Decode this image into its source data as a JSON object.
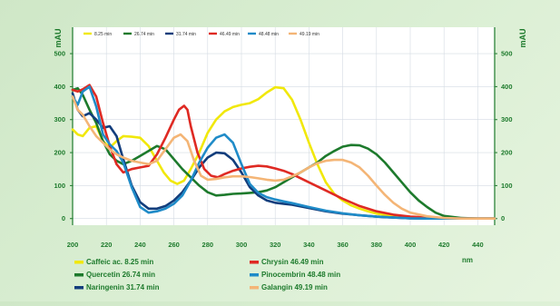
{
  "chart_data": {
    "type": "line",
    "xlabel": "nm",
    "ylabel": "mAU",
    "xlim": [
      200,
      450
    ],
    "ylim": [
      -20,
      580
    ],
    "x_ticks": [
      200,
      220,
      240,
      260,
      280,
      300,
      320,
      340,
      360,
      380,
      400,
      420,
      440
    ],
    "y_ticks": [
      0,
      100,
      200,
      300,
      400,
      500
    ],
    "grid": true,
    "legend_top_position": "top-left",
    "legend_top": [
      "8.25 min",
      "26.74 min",
      "31.74 min",
      "46.49 min",
      "48.48 min",
      "49.19 min"
    ],
    "legend_bottom_position": "bottom",
    "series": [
      {
        "name": "Caffeic ac. 8.25 min",
        "color": "#f1e80a",
        "x": [
          200,
          203,
          206,
          210,
          214,
          218,
          222,
          226,
          230,
          235,
          240,
          245,
          250,
          254,
          258,
          262,
          266,
          270,
          275,
          280,
          285,
          290,
          295,
          300,
          305,
          310,
          315,
          320,
          325,
          330,
          335,
          340,
          345,
          350,
          355,
          360,
          365,
          370,
          375,
          380,
          390,
          400,
          410,
          420,
          430,
          440,
          450
        ],
        "y": [
          270,
          255,
          250,
          275,
          280,
          235,
          215,
          235,
          250,
          248,
          245,
          220,
          175,
          140,
          115,
          105,
          115,
          150,
          200,
          260,
          300,
          325,
          338,
          345,
          350,
          362,
          382,
          398,
          395,
          360,
          300,
          230,
          165,
          110,
          75,
          55,
          40,
          30,
          22,
          15,
          8,
          3,
          1,
          0,
          0,
          0,
          0
        ]
      },
      {
        "name": "Quercetin 26.74 min",
        "color": "#1d7a2c",
        "x": [
          200,
          203,
          206,
          210,
          214,
          218,
          222,
          226,
          230,
          235,
          240,
          245,
          250,
          255,
          260,
          265,
          270,
          275,
          280,
          285,
          290,
          295,
          300,
          305,
          310,
          315,
          320,
          325,
          330,
          335,
          340,
          345,
          350,
          355,
          360,
          365,
          370,
          375,
          380,
          385,
          390,
          395,
          400,
          405,
          410,
          415,
          420,
          430,
          440,
          450
        ],
        "y": [
          390,
          395,
          375,
          330,
          290,
          235,
          195,
          175,
          165,
          175,
          190,
          205,
          220,
          210,
          180,
          150,
          125,
          100,
          80,
          70,
          72,
          75,
          76,
          78,
          80,
          85,
          95,
          110,
          125,
          140,
          155,
          170,
          190,
          205,
          218,
          223,
          222,
          212,
          195,
          170,
          140,
          110,
          80,
          55,
          35,
          18,
          8,
          2,
          0,
          0
        ]
      },
      {
        "name": "Naringenin 31.74 min",
        "color": "#123d7c",
        "x": [
          200,
          203,
          206,
          210,
          214,
          218,
          222,
          226,
          230,
          235,
          240,
          245,
          250,
          255,
          260,
          265,
          270,
          275,
          280,
          285,
          290,
          295,
          300,
          305,
          310,
          315,
          320,
          325,
          330,
          340,
          350,
          360,
          370,
          380,
          390,
          400,
          410,
          420,
          430,
          450
        ],
        "y": [
          380,
          330,
          310,
          320,
          300,
          275,
          280,
          250,
          180,
          100,
          50,
          30,
          30,
          38,
          55,
          80,
          115,
          155,
          185,
          200,
          198,
          178,
          140,
          95,
          70,
          55,
          48,
          45,
          42,
          32,
          22,
          15,
          10,
          6,
          3,
          1,
          0,
          0,
          0,
          0
        ]
      },
      {
        "name": "Chrysin 46.49 min",
        "color": "#df2a23",
        "x": [
          200,
          203,
          206,
          210,
          214,
          218,
          222,
          226,
          230,
          235,
          240,
          245,
          250,
          255,
          260,
          263,
          266,
          268,
          270,
          274,
          278,
          282,
          286,
          290,
          295,
          300,
          305,
          310,
          315,
          320,
          325,
          330,
          340,
          350,
          360,
          370,
          380,
          390,
          400,
          410,
          420,
          430,
          450
        ],
        "y": [
          390,
          385,
          392,
          405,
          370,
          290,
          220,
          165,
          140,
          150,
          155,
          160,
          195,
          245,
          300,
          330,
          342,
          330,
          280,
          200,
          150,
          130,
          125,
          135,
          145,
          152,
          157,
          160,
          158,
          152,
          145,
          135,
          110,
          85,
          60,
          38,
          22,
          12,
          6,
          3,
          1,
          0,
          0
        ]
      },
      {
        "name": "Pinocembrin 48.48 min",
        "color": "#1f8bc8",
        "x": [
          200,
          203,
          206,
          210,
          214,
          218,
          222,
          226,
          230,
          235,
          240,
          245,
          250,
          255,
          260,
          265,
          270,
          275,
          280,
          285,
          290,
          295,
          300,
          305,
          310,
          315,
          320,
          325,
          330,
          340,
          350,
          360,
          370,
          380,
          390,
          400,
          410,
          420,
          430,
          450
        ],
        "y": [
          370,
          345,
          385,
          400,
          340,
          255,
          225,
          205,
          170,
          95,
          35,
          18,
          22,
          30,
          45,
          70,
          115,
          170,
          215,
          245,
          255,
          230,
          165,
          105,
          78,
          65,
          58,
          52,
          47,
          35,
          24,
          16,
          10,
          6,
          3,
          1,
          0,
          0,
          0,
          0
        ]
      },
      {
        "name": "Galangin 49.19 min",
        "color": "#f4b576",
        "x": [
          200,
          203,
          206,
          210,
          214,
          218,
          222,
          226,
          230,
          235,
          240,
          245,
          250,
          255,
          260,
          264,
          268,
          272,
          276,
          280,
          285,
          290,
          295,
          300,
          305,
          310,
          315,
          320,
          325,
          330,
          335,
          340,
          345,
          350,
          355,
          360,
          365,
          370,
          375,
          380,
          385,
          390,
          395,
          400,
          410,
          420,
          430,
          450
        ],
        "y": [
          370,
          330,
          315,
          280,
          250,
          230,
          210,
          195,
          185,
          175,
          170,
          165,
          175,
          210,
          245,
          255,
          235,
          175,
          130,
          118,
          120,
          125,
          128,
          128,
          126,
          122,
          118,
          115,
          118,
          128,
          140,
          155,
          168,
          175,
          178,
          178,
          170,
          155,
          130,
          100,
          72,
          48,
          30,
          18,
          7,
          2,
          0,
          0
        ]
      }
    ]
  }
}
